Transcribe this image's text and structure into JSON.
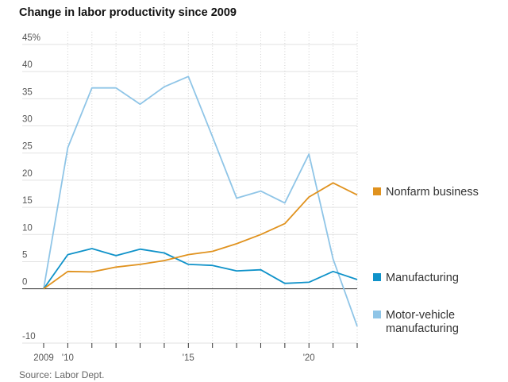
{
  "title": "Change in labor productivity since 2009",
  "source": "Source: Labor Dept.",
  "chart_data": {
    "type": "line",
    "x": [
      2009,
      2010,
      2011,
      2012,
      2013,
      2014,
      2015,
      2016,
      2017,
      2018,
      2019,
      2020,
      2021,
      2022
    ],
    "ylim": [
      -10,
      45
    ],
    "y_ticks": [
      {
        "value": 45,
        "label": "45%"
      },
      {
        "value": 40,
        "label": "40"
      },
      {
        "value": 35,
        "label": "35"
      },
      {
        "value": 30,
        "label": "30"
      },
      {
        "value": 25,
        "label": "25"
      },
      {
        "value": 20,
        "label": "20"
      },
      {
        "value": 15,
        "label": "15"
      },
      {
        "value": 10,
        "label": "10"
      },
      {
        "value": 5,
        "label": "5"
      },
      {
        "value": 0,
        "label": "0"
      },
      {
        "value": -10,
        "label": "-10"
      }
    ],
    "x_ticks": [
      {
        "value": 2009,
        "label": "2009"
      },
      {
        "value": 2010,
        "label": "'10"
      },
      {
        "value": 2015,
        "label": "'15"
      },
      {
        "value": 2020,
        "label": "'20"
      }
    ],
    "grid": true,
    "legend_placement": "right",
    "series": [
      {
        "name": "Nonfarm business",
        "color": "#e0921e",
        "values": [
          0,
          3.2,
          3.1,
          4.0,
          4.5,
          5.2,
          6.3,
          6.9,
          8.3,
          10.0,
          12.0,
          16.9,
          19.5,
          17.3
        ]
      },
      {
        "name": "Manufacturing",
        "color": "#0f92c9",
        "values": [
          0,
          6.3,
          7.4,
          6.1,
          7.3,
          6.6,
          4.5,
          4.3,
          3.3,
          3.5,
          1.0,
          1.2,
          3.2,
          1.7
        ]
      },
      {
        "name": "Motor-vehicle manufacturing",
        "label_lines": [
          "Motor-vehicle",
          "manufacturing"
        ],
        "color": "#8fc5e7",
        "values": [
          0,
          26.0,
          37.0,
          37.0,
          34.0,
          37.2,
          39.1,
          28.0,
          16.7,
          18.0,
          15.8,
          24.8,
          5.5,
          -6.9
        ]
      }
    ]
  }
}
